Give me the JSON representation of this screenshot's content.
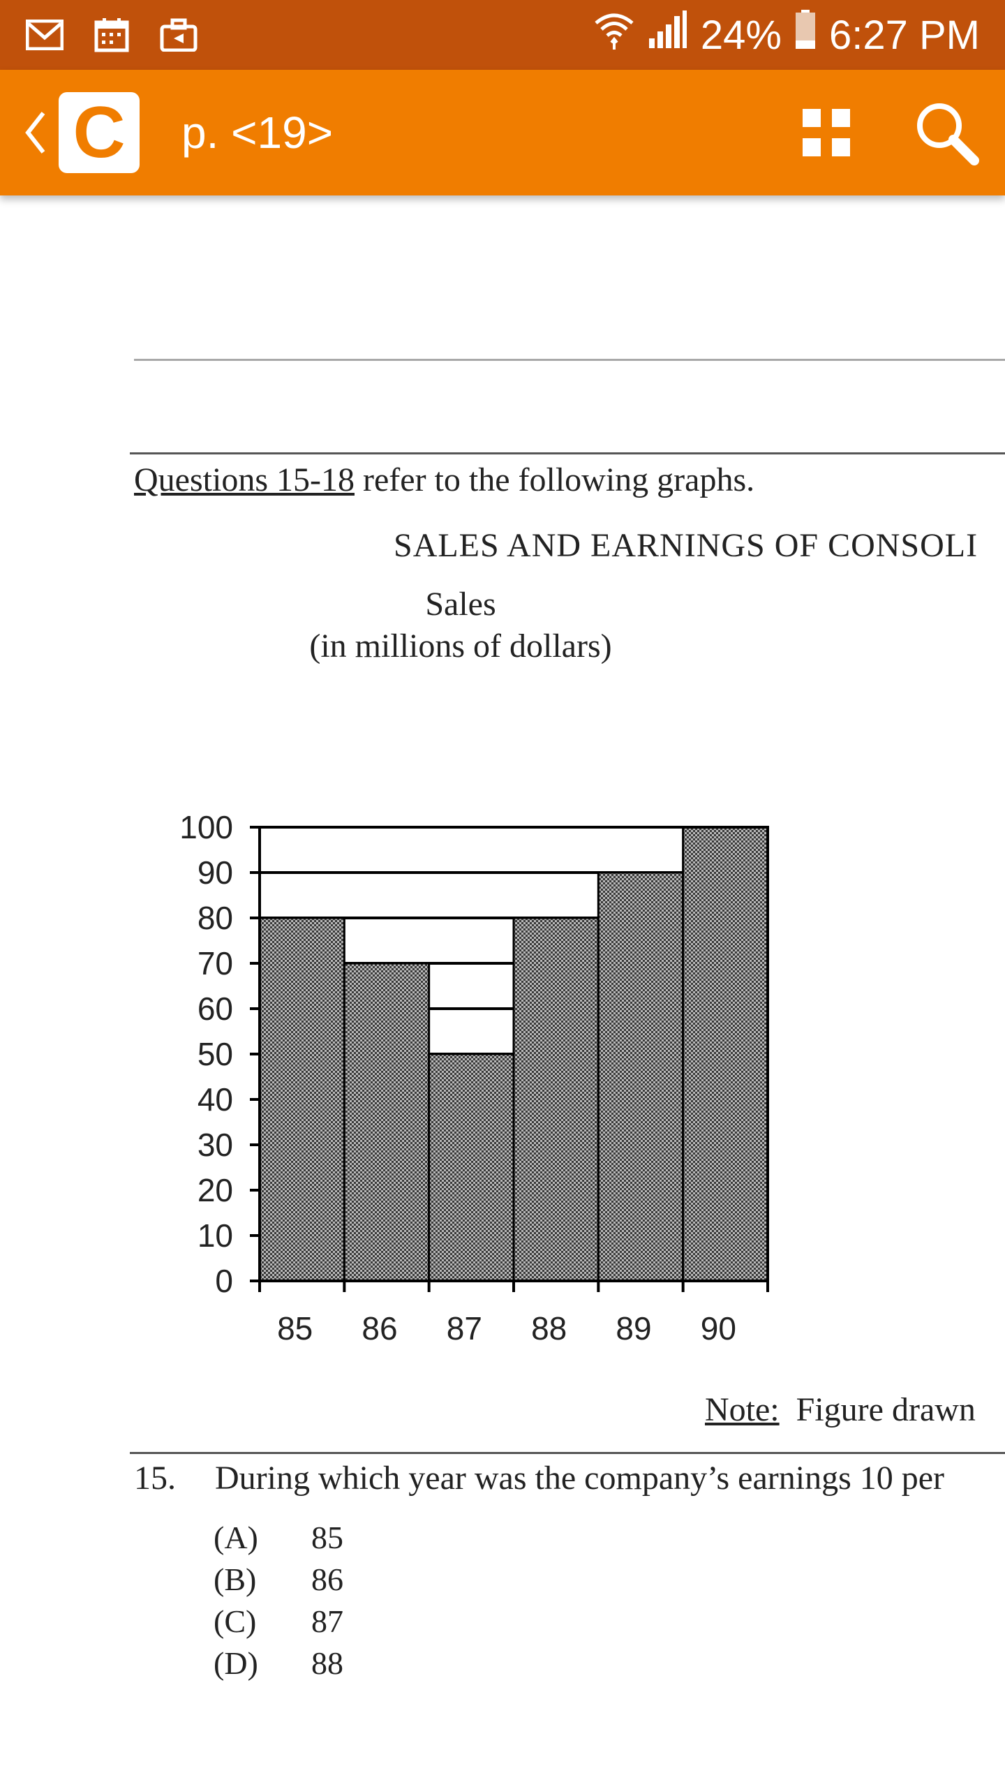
{
  "status_bar": {
    "left_icons": [
      "gmail-icon",
      "calendar-icon",
      "briefcase-icon"
    ],
    "battery": "24%",
    "time": "6:27 PM",
    "bg_color": "#c0510b"
  },
  "toolbar": {
    "logo_letter": "C",
    "page_title": "p. <19>",
    "bg_color": "#f07d00"
  },
  "document": {
    "intro_underlined": "Questions 15-18",
    "intro_rest": " refer to the following graphs.",
    "figure_title": "SALES AND EARNINGS OF CONSOLI",
    "note_label": "Note:",
    "note_text": "Figure drawn",
    "question": {
      "number": "15.",
      "text": "During which year was the company’s earnings 10 per",
      "options": [
        {
          "letter": "(A)",
          "value": "85"
        },
        {
          "letter": "(B)",
          "value": "86"
        },
        {
          "letter": "(C)",
          "value": "87"
        },
        {
          "letter": "(D)",
          "value": "88"
        }
      ]
    }
  },
  "chart_data": {
    "type": "bar",
    "title": "Sales",
    "subtitle": "(in millions of dollars)",
    "categories": [
      "85",
      "86",
      "87",
      "88",
      "89",
      "90"
    ],
    "values": [
      80,
      70,
      50,
      80,
      90,
      100
    ],
    "y_ticks": [
      "0",
      "10",
      "20",
      "30",
      "40",
      "50",
      "60",
      "70",
      "80",
      "90",
      "100"
    ],
    "ylim": [
      0,
      100
    ],
    "grid": true
  }
}
